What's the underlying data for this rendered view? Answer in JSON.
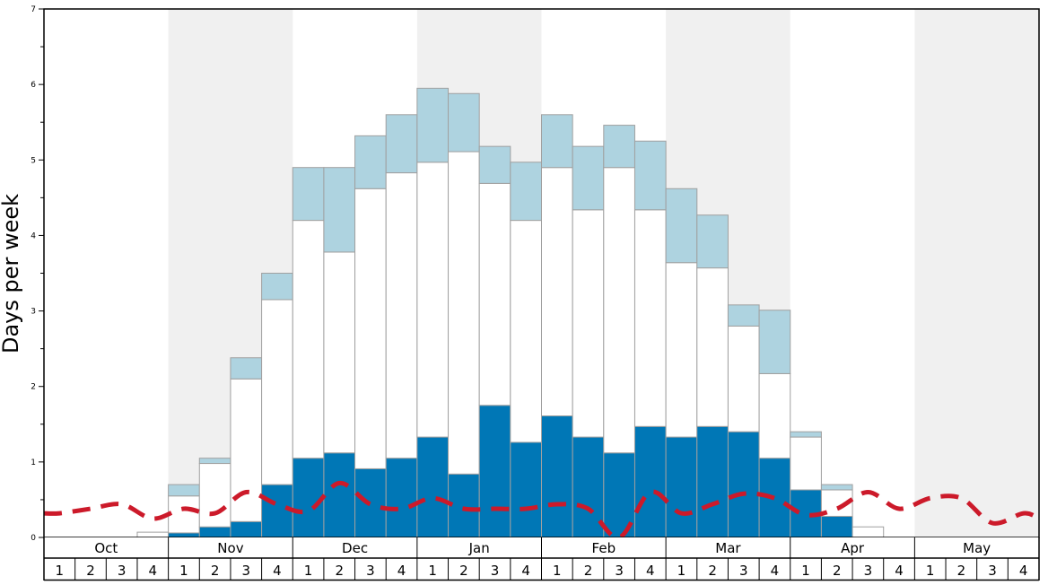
{
  "chart_data": {
    "type": "bar",
    "ylabel": "Days per week",
    "ylim": [
      0,
      7
    ],
    "yticks": [
      "0",
      "1",
      "2",
      "3",
      "4",
      "5",
      "6",
      "7"
    ],
    "months": [
      "Oct",
      "Nov",
      "Dec",
      "Jan",
      "Feb",
      "Mar",
      "Apr",
      "May"
    ],
    "weeks": [
      "1",
      "2",
      "3",
      "4"
    ],
    "stacked": true,
    "series": [
      {
        "color": "#0077b6",
        "values": [
          0,
          0,
          0,
          0,
          0.06,
          0.14,
          0.21,
          0.7,
          1.05,
          1.12,
          0.91,
          1.05,
          1.33,
          0.84,
          1.75,
          1.26,
          1.61,
          1.33,
          1.12,
          1.47,
          1.33,
          1.47,
          1.4,
          1.05,
          0.63,
          0.28,
          0,
          0,
          0,
          0,
          0,
          0
        ]
      },
      {
        "color": "#ffffff",
        "values": [
          0,
          0,
          0,
          0.07,
          0.49,
          0.84,
          1.89,
          2.45,
          3.15,
          2.66,
          3.71,
          3.78,
          3.64,
          4.27,
          2.94,
          2.94,
          3.29,
          3.01,
          3.78,
          2.87,
          2.31,
          2.1,
          1.4,
          1.12,
          0.7,
          0.35,
          0.14,
          0,
          0,
          0,
          0,
          0
        ]
      },
      {
        "color": "#aed3e0",
        "values": [
          0,
          0,
          0,
          0,
          0.15,
          0.07,
          0.28,
          0.35,
          0.7,
          1.12,
          0.7,
          0.77,
          0.98,
          0.77,
          0.49,
          0.77,
          0.7,
          0.84,
          0.56,
          0.91,
          0.98,
          0.7,
          0.28,
          0.84,
          0.07,
          0.07,
          0,
          0,
          0,
          0,
          0,
          0
        ]
      }
    ],
    "average_line": {
      "color": "#cc1a2a",
      "values": [
        0.32,
        0.38,
        0.44,
        0.25,
        0.38,
        0.32,
        0.6,
        0.44,
        0.35,
        0.72,
        0.44,
        0.38,
        0.52,
        0.38,
        0.38,
        0.38,
        0.44,
        0.38,
        0.0,
        0.6,
        0.32,
        0.44,
        0.58,
        0.52,
        0.3,
        0.38,
        0.6,
        0.38,
        0.52,
        0.52,
        0.19,
        0.32
      ]
    },
    "shaded_months": [
      "Nov",
      "Jan",
      "Mar",
      "May"
    ],
    "grid": false
  }
}
